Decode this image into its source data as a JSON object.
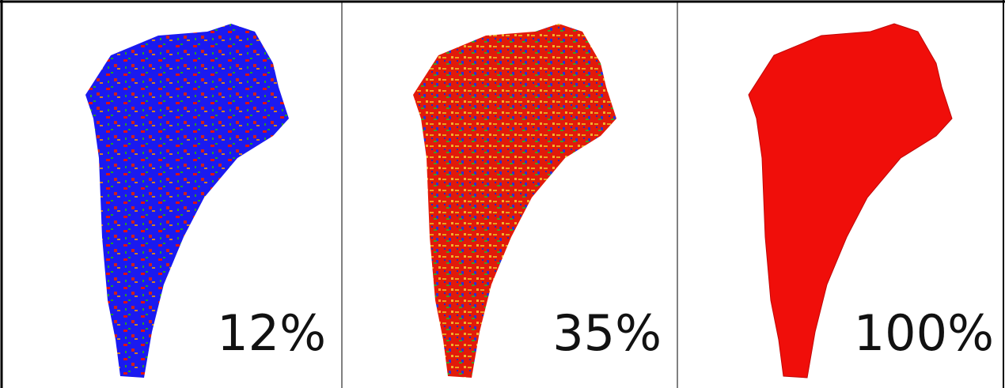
{
  "panels": [
    {
      "label": "12%"
    },
    {
      "label": "35%"
    },
    {
      "label": "100%"
    }
  ]
}
